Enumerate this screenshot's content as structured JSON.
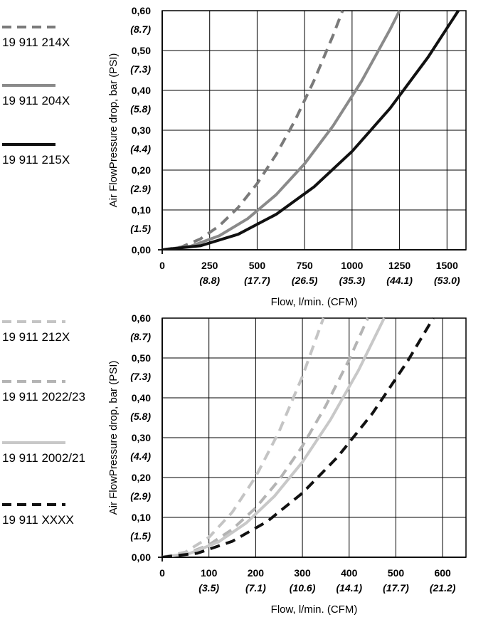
{
  "chart_data": [
    {
      "type": "line",
      "xlabel": "Flow, l/min. (CFM)",
      "ylabel": "Air FlowPressure drop, bar (PSI)",
      "xlim": [
        0,
        1600
      ],
      "ylim": [
        0,
        0.6
      ],
      "grid": true,
      "legend_position": "left",
      "x_ticks": [
        {
          "value": 0,
          "label": "0",
          "sub": ""
        },
        {
          "value": 250,
          "label": "250",
          "sub": "(8.8)"
        },
        {
          "value": 500,
          "label": "500",
          "sub": "(17.7)"
        },
        {
          "value": 750,
          "label": "750",
          "sub": "(26.5)"
        },
        {
          "value": 1000,
          "label": "1000",
          "sub": "(35.3)"
        },
        {
          "value": 1250,
          "label": "1250",
          "sub": "(44.1)"
        },
        {
          "value": 1500,
          "label": "1500",
          "sub": "(53.0)"
        }
      ],
      "y_ticks": [
        {
          "value": 0,
          "label": "0,00",
          "sub": ""
        },
        {
          "value": 0.1,
          "label": "0,10",
          "sub": "(1.5)"
        },
        {
          "value": 0.2,
          "label": "0,20",
          "sub": "(2.9)"
        },
        {
          "value": 0.3,
          "label": "0,30",
          "sub": "(4.4)"
        },
        {
          "value": 0.4,
          "label": "0,40",
          "sub": "(5.8)"
        },
        {
          "value": 0.5,
          "label": "0,50",
          "sub": "(7.3)"
        },
        {
          "value": 0.6,
          "label": "0,60",
          "sub": "(8.7)"
        }
      ],
      "series": [
        {
          "name": "19 911 214X",
          "color": "#7a7a7a",
          "dash": true,
          "x": [
            0,
            100,
            200,
            300,
            400,
            500,
            600,
            700,
            800,
            900,
            950
          ],
          "y": [
            0,
            0.007,
            0.027,
            0.06,
            0.106,
            0.166,
            0.239,
            0.325,
            0.425,
            0.538,
            0.6
          ]
        },
        {
          "name": "19 911 204X",
          "color": "#8a8a8a",
          "dash": false,
          "x": [
            0,
            150,
            300,
            450,
            600,
            750,
            900,
            1050,
            1200,
            1250
          ],
          "y": [
            0,
            0.009,
            0.035,
            0.078,
            0.138,
            0.216,
            0.311,
            0.423,
            0.553,
            0.6
          ]
        },
        {
          "name": "19 911 215X",
          "color": "#111111",
          "dash": false,
          "x": [
            0,
            200,
            400,
            600,
            800,
            1000,
            1200,
            1400,
            1560
          ],
          "y": [
            0,
            0.01,
            0.039,
            0.089,
            0.158,
            0.247,
            0.355,
            0.483,
            0.6
          ]
        }
      ]
    },
    {
      "type": "line",
      "xlabel": "Flow, l/min. (CFM)",
      "ylabel": "Air FlowPressure drop, bar (PSI)",
      "xlim": [
        0,
        650
      ],
      "ylim": [
        0,
        0.6
      ],
      "grid": true,
      "legend_position": "left",
      "x_ticks": [
        {
          "value": 0,
          "label": "0",
          "sub": ""
        },
        {
          "value": 100,
          "label": "100",
          "sub": "(3.5)"
        },
        {
          "value": 200,
          "label": "200",
          "sub": "(7.1)"
        },
        {
          "value": 300,
          "label": "300",
          "sub": "(10.6)"
        },
        {
          "value": 400,
          "label": "400",
          "sub": "(14.1)"
        },
        {
          "value": 500,
          "label": "500",
          "sub": "(17.7)"
        },
        {
          "value": 600,
          "label": "600",
          "sub": "(21.2)"
        }
      ],
      "y_ticks": [
        {
          "value": 0,
          "label": "0,00",
          "sub": ""
        },
        {
          "value": 0.1,
          "label": "0,10",
          "sub": "(1.5)"
        },
        {
          "value": 0.2,
          "label": "0,20",
          "sub": "(2.9)"
        },
        {
          "value": 0.3,
          "label": "0,30",
          "sub": "(4.4)"
        },
        {
          "value": 0.4,
          "label": "0,40",
          "sub": "(5.8)"
        },
        {
          "value": 0.5,
          "label": "0,50",
          "sub": "(7.3)"
        },
        {
          "value": 0.6,
          "label": "0,60",
          "sub": "(8.7)"
        }
      ],
      "series": [
        {
          "name": "19 911 212X",
          "color": "#c4c4c4",
          "dash": true,
          "x": [
            0,
            50,
            100,
            150,
            200,
            250,
            300,
            345
          ],
          "y": [
            0,
            0.013,
            0.05,
            0.113,
            0.202,
            0.315,
            0.454,
            0.6
          ]
        },
        {
          "name": "19 911 2022/23",
          "color": "#b4b4b4",
          "dash": true,
          "x": [
            0,
            50,
            100,
            150,
            200,
            250,
            300,
            350,
            400,
            440
          ],
          "y": [
            0,
            0.008,
            0.031,
            0.07,
            0.124,
            0.194,
            0.279,
            0.38,
            0.496,
            0.6
          ]
        },
        {
          "name": "19 911 2002/21",
          "color": "#c8c8c8",
          "dash": false,
          "x": [
            0,
            60,
            120,
            180,
            240,
            300,
            360,
            420,
            475
          ],
          "y": [
            0,
            0.01,
            0.038,
            0.086,
            0.153,
            0.239,
            0.345,
            0.469,
            0.6
          ]
        },
        {
          "name": "19 911 XXXX",
          "color": "#111111",
          "dash": true,
          "x": [
            0,
            75,
            150,
            225,
            300,
            375,
            450,
            525,
            580
          ],
          "y": [
            0,
            0.01,
            0.04,
            0.09,
            0.161,
            0.251,
            0.361,
            0.492,
            0.6
          ]
        }
      ]
    }
  ]
}
